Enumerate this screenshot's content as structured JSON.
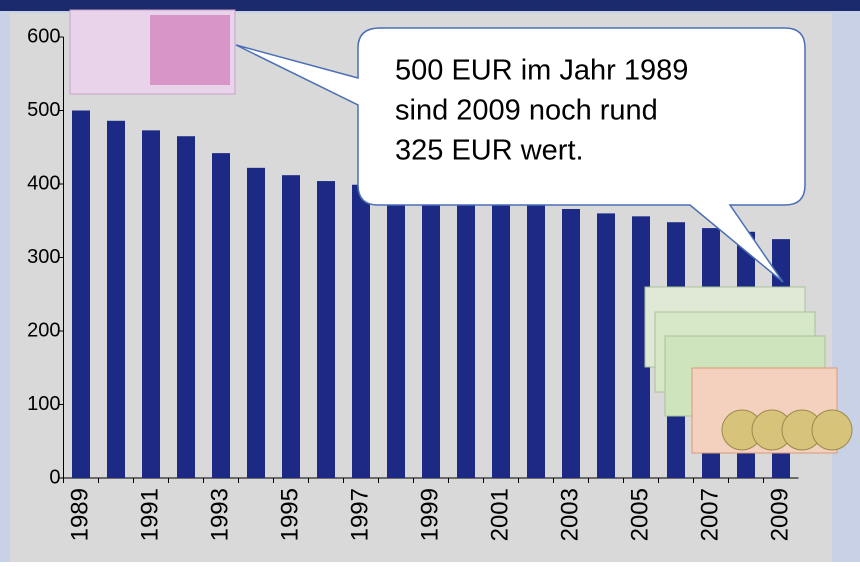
{
  "chart_data": {
    "type": "bar",
    "categories": [
      "1989",
      null,
      "1991",
      null,
      "1993",
      null,
      "1995",
      null,
      "1997",
      null,
      "1999",
      null,
      "2001",
      null,
      "2003",
      null,
      "2005",
      null,
      "2007",
      null,
      "2009"
    ],
    "values": [
      500,
      486,
      473,
      465,
      442,
      422,
      412,
      404,
      399,
      390,
      385,
      378,
      375,
      371,
      366,
      360,
      356,
      348,
      340,
      335,
      325
    ],
    "color": "#1c2a85",
    "ylim": [
      0,
      600
    ],
    "yticks": [
      0,
      100,
      200,
      300,
      400,
      500,
      600
    ],
    "annotations": [
      "500 EUR im Jahr 1989",
      "sind 2009 noch rund",
      "325 EUR wert."
    ]
  }
}
